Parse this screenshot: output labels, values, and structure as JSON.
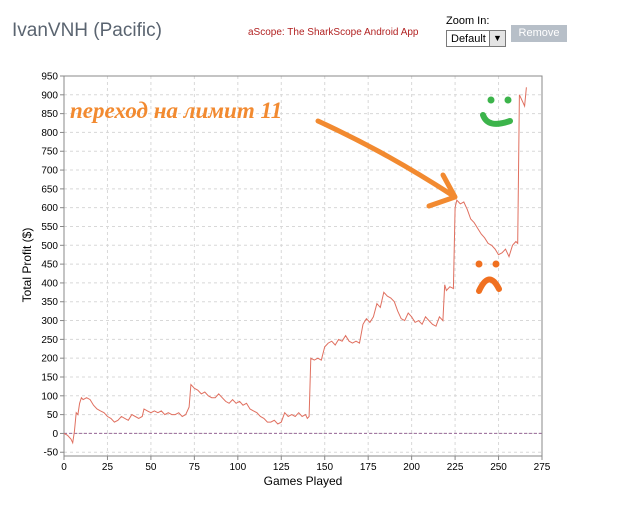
{
  "header": {
    "player_title": "IvanVNH (Pacific)",
    "app_link": "aScope: The SharkScope Android App",
    "zoom_label": "Zoom In:",
    "zoom_value": "Default",
    "remove_label": "Remove"
  },
  "colors": {
    "line": "#e07060",
    "zero_line": "#9a6a9a",
    "grid": "#d8d8d8",
    "annotation": "#f28a30",
    "smile": "#3cb44b",
    "frown": "#f07020"
  },
  "annotation": {
    "text": "переход на лимит 11"
  },
  "chart_data": {
    "type": "line",
    "xlabel": "Games Played",
    "ylabel": "Total Profit ($)",
    "xlim": [
      0,
      275
    ],
    "ylim": [
      -60,
      950
    ],
    "x_ticks": [
      0,
      25,
      50,
      75,
      100,
      125,
      150,
      175,
      200,
      225,
      250,
      275
    ],
    "y_ticks": [
      -50,
      0,
      50,
      100,
      150,
      200,
      250,
      300,
      350,
      400,
      450,
      500,
      550,
      600,
      650,
      700,
      750,
      800,
      850,
      900,
      950
    ],
    "grid": true,
    "series": [
      {
        "x": [
          0,
          2,
          4,
          5,
          6,
          7,
          8,
          9,
          10,
          11,
          13,
          15,
          17,
          19,
          21,
          23,
          25,
          27,
          29,
          31,
          33,
          35,
          37,
          39,
          41,
          43,
          45,
          46,
          48,
          50,
          52,
          54,
          56,
          58,
          60,
          62,
          64,
          66,
          68,
          70,
          72,
          73,
          75,
          77,
          79,
          81,
          83,
          85,
          87,
          89,
          91,
          93,
          95,
          97,
          99,
          101,
          103,
          105,
          107,
          109,
          111,
          113,
          115,
          117,
          119,
          121,
          123,
          125,
          127,
          129,
          131,
          133,
          135,
          137,
          139,
          140,
          141,
          142,
          144,
          146,
          148,
          150,
          152,
          154,
          156,
          158,
          160,
          162,
          164,
          166,
          168,
          170,
          172,
          174,
          176,
          178,
          180,
          182,
          184,
          186,
          188,
          190,
          192,
          194,
          196,
          198,
          200,
          202,
          204,
          206,
          208,
          210,
          212,
          214,
          216,
          218,
          219,
          220,
          222,
          224,
          225,
          226,
          228,
          230,
          232,
          234,
          236,
          238,
          240,
          242,
          244,
          246,
          248,
          250,
          252,
          254,
          256,
          258,
          260,
          261,
          262,
          264,
          265,
          266
        ],
        "y": [
          0,
          -5,
          -15,
          -25,
          5,
          55,
          50,
          80,
          95,
          90,
          95,
          90,
          75,
          65,
          60,
          55,
          45,
          40,
          30,
          35,
          45,
          40,
          35,
          50,
          45,
          40,
          45,
          65,
          60,
          55,
          60,
          55,
          60,
          50,
          55,
          50,
          50,
          55,
          45,
          50,
          70,
          130,
          120,
          115,
          105,
          110,
          100,
          95,
          95,
          105,
          95,
          85,
          80,
          90,
          80,
          85,
          75,
          80,
          65,
          60,
          55,
          45,
          40,
          30,
          30,
          35,
          25,
          30,
          55,
          45,
          50,
          45,
          55,
          45,
          50,
          40,
          45,
          200,
          195,
          200,
          195,
          230,
          240,
          245,
          235,
          250,
          245,
          260,
          245,
          240,
          245,
          240,
          290,
          305,
          295,
          310,
          345,
          335,
          375,
          365,
          360,
          350,
          325,
          305,
          300,
          320,
          310,
          295,
          300,
          290,
          310,
          300,
          290,
          285,
          310,
          300,
          395,
          380,
          390,
          385,
          600,
          620,
          610,
          615,
          595,
          570,
          560,
          545,
          530,
          520,
          505,
          500,
          490,
          475,
          480,
          490,
          470,
          500,
          510,
          505,
          900,
          880,
          870,
          920
        ]
      }
    ]
  }
}
